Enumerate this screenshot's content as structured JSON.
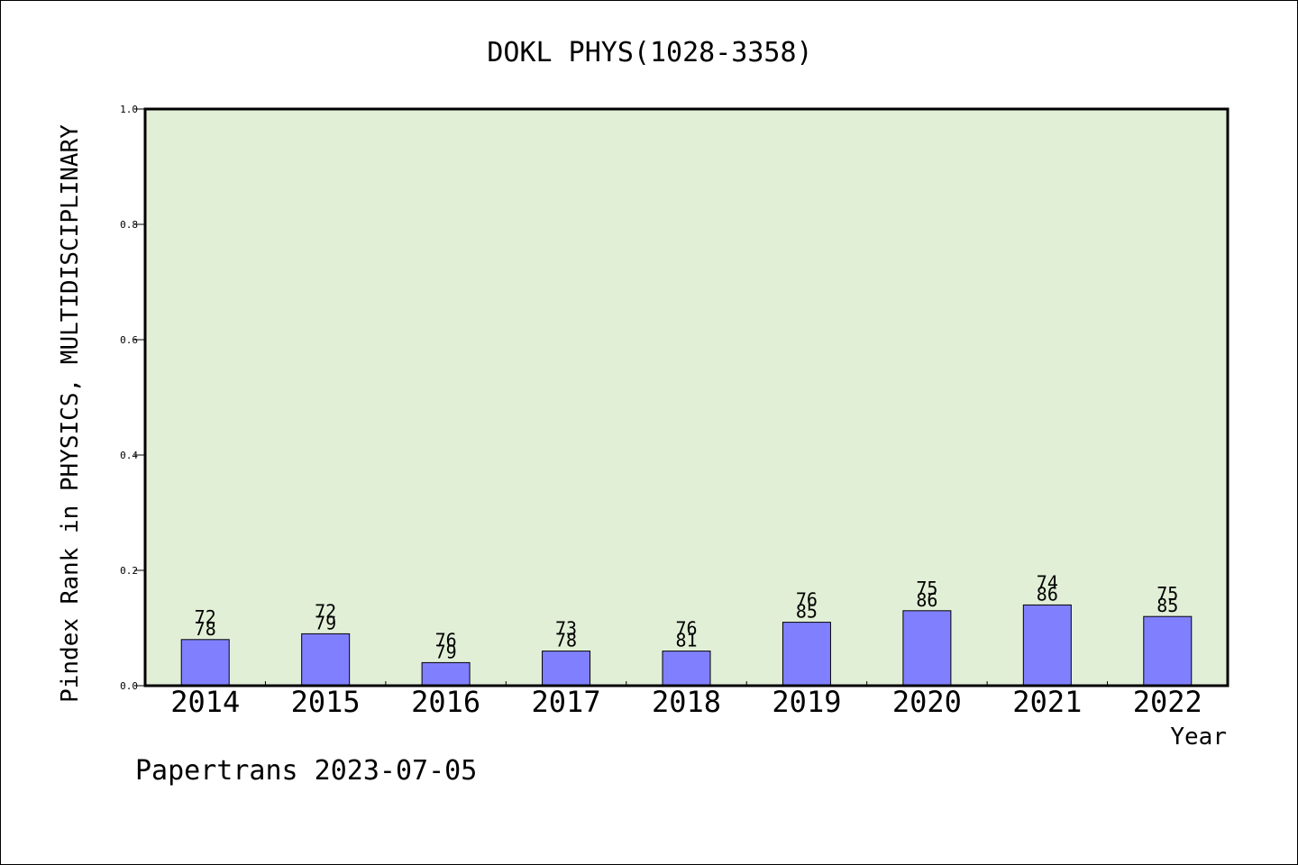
{
  "chart_data": {
    "type": "bar",
    "title": "DOKL PHYS(1028-3358)",
    "xlabel": "Year",
    "ylabel": "Pindex Rank in PHYSICS, MULTIDISCIPLINARY",
    "categories": [
      "2014",
      "2015",
      "2016",
      "2017",
      "2018",
      "2019",
      "2020",
      "2021",
      "2022"
    ],
    "values": [
      0.08,
      0.09,
      0.04,
      0.06,
      0.06,
      0.11,
      0.13,
      0.14,
      0.12
    ],
    "rank_labels": [
      "72",
      "72",
      "76",
      "73",
      "76",
      "76",
      "75",
      "74",
      "75"
    ],
    "total_labels": [
      "78",
      "79",
      "79",
      "78",
      "81",
      "85",
      "86",
      "86",
      "85"
    ],
    "ylim": [
      0,
      1.0
    ],
    "yticks": [
      "0.0",
      "0.2",
      "0.4",
      "0.6",
      "0.8",
      "1.0"
    ],
    "grid": false,
    "colors": {
      "plot_background": "#e2efd7",
      "bar_fill": "#8080ff",
      "bar_stroke": "#000000",
      "axis": "#000000"
    }
  },
  "footer": {
    "text": "Papertrans 2023-07-05"
  }
}
